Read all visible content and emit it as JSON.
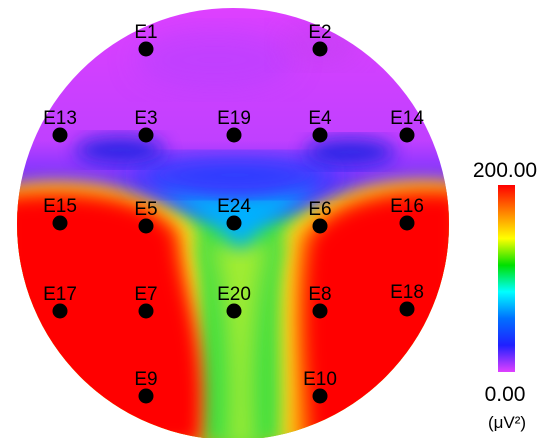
{
  "colorbar": {
    "max_label": "200.00",
    "min_label": "0.00",
    "unit_label": "(μV²)",
    "max_value": 200.0,
    "min_value": 0.0,
    "colors": [
      "#ff0000",
      "#ff8000",
      "#ffff00",
      "#00e000",
      "#00ffff",
      "#0070ff",
      "#2020ff",
      "#e040ff"
    ]
  },
  "electrodes": [
    {
      "id": "E1"
    },
    {
      "id": "E2"
    },
    {
      "id": "E13"
    },
    {
      "id": "E3"
    },
    {
      "id": "E19"
    },
    {
      "id": "E4"
    },
    {
      "id": "E14"
    },
    {
      "id": "E15"
    },
    {
      "id": "E5"
    },
    {
      "id": "E24"
    },
    {
      "id": "E6"
    },
    {
      "id": "E16"
    },
    {
      "id": "E17"
    },
    {
      "id": "E7"
    },
    {
      "id": "E20"
    },
    {
      "id": "E8"
    },
    {
      "id": "E18"
    },
    {
      "id": "E9"
    },
    {
      "id": "E10"
    }
  ]
}
